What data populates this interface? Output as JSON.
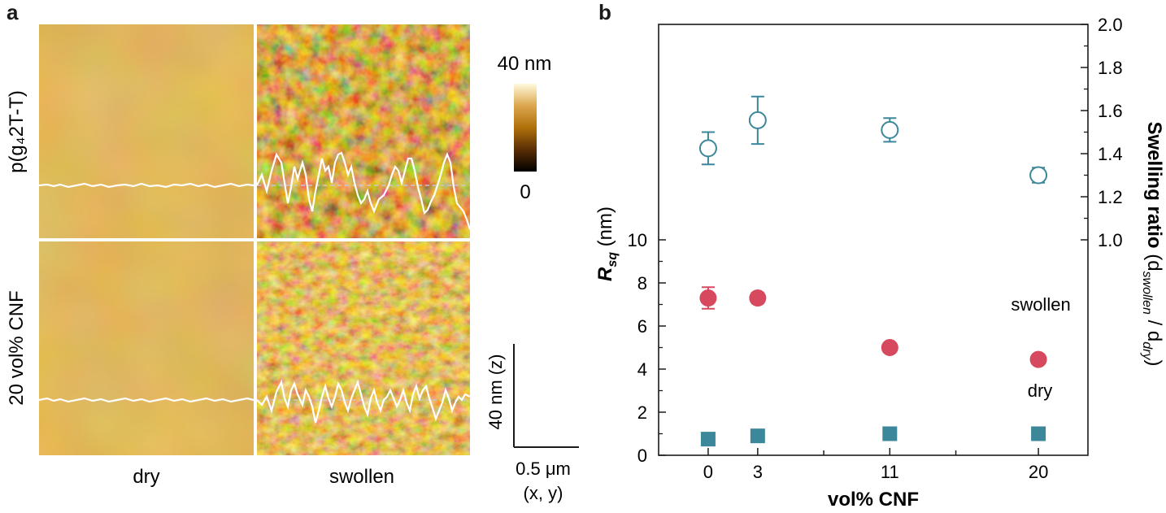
{
  "panel_a": {
    "label": "a",
    "row_labels": [
      "p(g₄2T-T)",
      "20 vol% CNF"
    ],
    "column_labels": [
      "dry",
      "swollen"
    ],
    "colorbar": {
      "max_label": "40 nm",
      "min_label": "0",
      "colors": [
        "#000000",
        "#5a2e05",
        "#b0700a",
        "#dca64e",
        "#fffadc"
      ]
    },
    "scalebar": {
      "z_label": "40 nm (z)",
      "xy_label": "0.5 μm",
      "xy_sub": "(x, y)"
    }
  },
  "panel_b": {
    "label": "b"
  },
  "chart_data": {
    "type": "scatter",
    "categories": [
      "0",
      "3",
      "11",
      "20"
    ],
    "x": [
      0,
      3,
      11,
      20
    ],
    "xlabel": "vol% CNF",
    "xlim": [
      -3,
      23
    ],
    "ylabel_left": "R",
    "ylabel_left_sub": "sq",
    "ylabel_left_unit": " (nm)",
    "ylim_left": [
      0,
      20
    ],
    "yticks_left": [
      "0",
      "2",
      "4",
      "6",
      "8",
      "10"
    ],
    "ylabel_right": "Swelling ratio",
    "ylabel_right_paren": "(d",
    "ylabel_right_sub1": "swollen",
    "ylabel_right_mid": " / d",
    "ylabel_right_sub2": "dry",
    "ylabel_right_close": ")",
    "ylim_right": [
      0.0,
      2.0
    ],
    "yticks_right": [
      "1.0",
      "1.2",
      "1.4",
      "1.6",
      "1.8",
      "2.0"
    ],
    "series": [
      {
        "name": "swollen",
        "axis": "left",
        "marker": "circle-filled",
        "color": "#d6495e",
        "values": [
          7.3,
          7.3,
          5.0,
          4.45
        ],
        "errors": [
          0.5,
          0.25,
          0.15,
          0.15
        ]
      },
      {
        "name": "dry",
        "axis": "left",
        "marker": "square-filled",
        "color": "#3c8799",
        "values": [
          0.75,
          0.9,
          1.0,
          1.0
        ],
        "errors": [
          0.1,
          0.1,
          0.1,
          0.1
        ]
      },
      {
        "axis": "right",
        "marker": "circle-open",
        "color": "#3c8799",
        "values": [
          1.425,
          1.555,
          1.51,
          1.3
        ],
        "errors": [
          0.075,
          0.11,
          0.055,
          0.035
        ]
      }
    ]
  }
}
